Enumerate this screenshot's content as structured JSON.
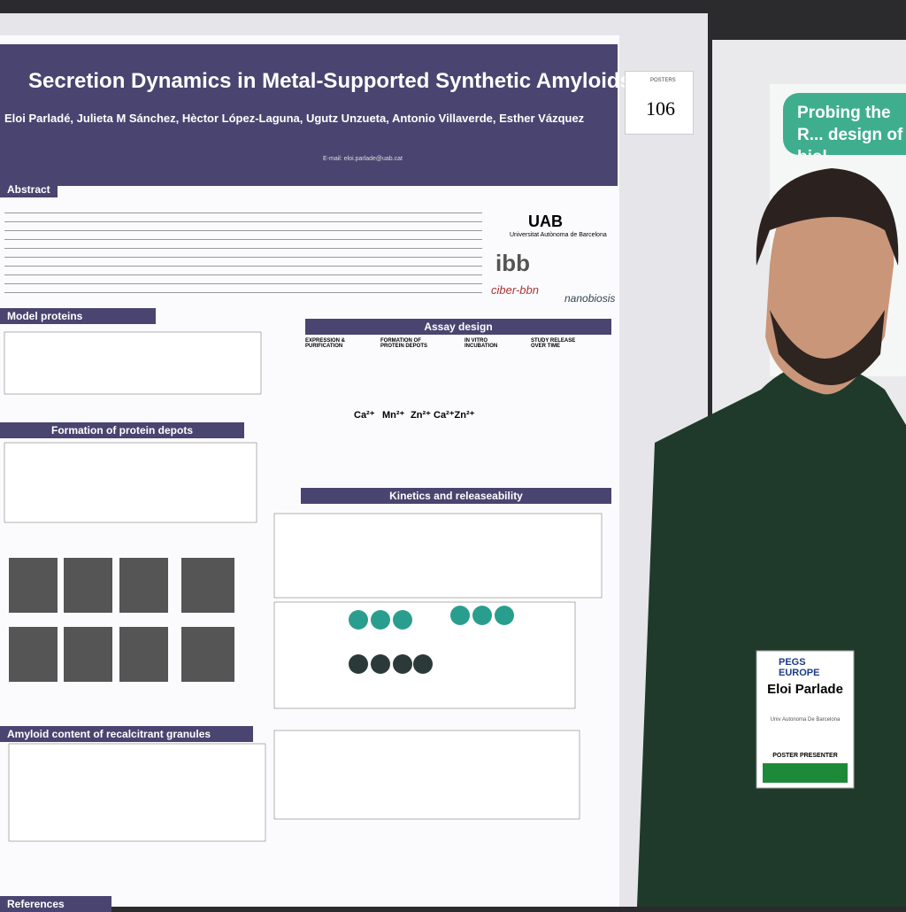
{
  "poster": {
    "title": "Secretion Dynamics in Metal-Supported Synthetic Amyloids",
    "authors": "Eloi Parladé, Julieta M Sánchez, Hèctor López-Laguna, Ugutz Unzueta, Antonio Villaverde, Esther Vázquez",
    "email": "E-mail: eloi.parlade@uab.cat",
    "number_label": "POSTERS",
    "number": "106",
    "sections": [
      "Abstract",
      "Model proteins",
      "Assay design",
      "Formation of protein depots",
      "Kinetics and releaseability",
      "Amyloid content of recalcitrant granules",
      "References"
    ],
    "logos": [
      "UAB",
      "Universitat Autònoma de Barcelona",
      "ibb",
      "ciber-bbn",
      "nanobiosis"
    ],
    "assay_steps": [
      "EXPRESSION & PURIFICATION",
      "FORMATION OF PROTEIN DEPOTS",
      "IN VITRO INCUBATION",
      "STUDY RELEASE OVER TIME"
    ],
    "ions": [
      "Ca²⁺",
      "Mn²⁺",
      "Zn²⁺",
      "Ca²⁺Zn²⁺"
    ]
  },
  "neighbor_poster": {
    "title": "Probing the R... design of biol..."
  },
  "badge": {
    "event": "PEGS EUROPE",
    "name": "Eloi Parlade",
    "affiliation": "Univ Autonoma De Barcelona",
    "role": "POSTER PRESENTER"
  }
}
